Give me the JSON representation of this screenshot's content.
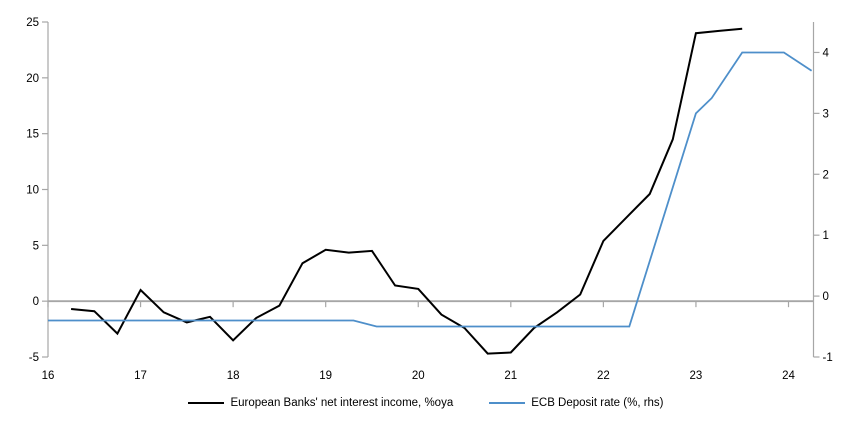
{
  "chart_data": {
    "type": "line",
    "title": "",
    "x_axis": {
      "ticks": [
        16,
        17,
        18,
        19,
        20,
        21,
        22,
        23,
        24
      ],
      "range": [
        16,
        24.27
      ]
    },
    "left_axis": {
      "ticks": [
        -5,
        0,
        5,
        10,
        15,
        20,
        25
      ],
      "range": [
        -5,
        25
      ]
    },
    "right_axis": {
      "ticks": [
        -1,
        0,
        1,
        2,
        3,
        4
      ],
      "range": [
        -1,
        4.5
      ]
    },
    "zero_line": true,
    "legend_position": "bottom",
    "series": [
      {
        "name": "European Banks' net interest income, %oya",
        "axis": "left",
        "color": "#000000",
        "width": 2,
        "points": [
          [
            16.25,
            -0.7
          ],
          [
            16.5,
            -0.9
          ],
          [
            16.75,
            -2.9
          ],
          [
            17.0,
            1.0
          ],
          [
            17.25,
            -1.0
          ],
          [
            17.5,
            -1.9
          ],
          [
            17.75,
            -1.4
          ],
          [
            18.0,
            -3.5
          ],
          [
            18.25,
            -1.5
          ],
          [
            18.5,
            -0.4
          ],
          [
            18.75,
            3.4
          ],
          [
            19.0,
            4.6
          ],
          [
            19.25,
            4.35
          ],
          [
            19.5,
            4.5
          ],
          [
            19.75,
            1.4
          ],
          [
            20.0,
            1.1
          ],
          [
            20.25,
            -1.2
          ],
          [
            20.5,
            -2.4
          ],
          [
            20.75,
            -4.7
          ],
          [
            21.0,
            -4.6
          ],
          [
            21.25,
            -2.4
          ],
          [
            21.5,
            -1.0
          ],
          [
            21.75,
            0.6
          ],
          [
            22.0,
            5.4
          ],
          [
            22.25,
            7.5
          ],
          [
            22.5,
            9.6
          ],
          [
            22.75,
            14.5
          ],
          [
            23.0,
            24.0
          ],
          [
            23.25,
            24.2
          ],
          [
            23.5,
            24.4
          ]
        ]
      },
      {
        "name": "ECB Deposit rate (%, rhs)",
        "axis": "right",
        "color": "#4e8fca",
        "width": 1.8,
        "points": [
          [
            16.0,
            -0.4
          ],
          [
            19.3,
            -0.4
          ],
          [
            19.55,
            -0.5
          ],
          [
            22.28,
            -0.5
          ],
          [
            23.0,
            3.0
          ],
          [
            23.17,
            3.25
          ],
          [
            23.5,
            4.0
          ],
          [
            23.95,
            4.0
          ],
          [
            24.25,
            3.7
          ]
        ]
      }
    ]
  },
  "colors": {
    "axis": "#a6a6a6",
    "text": "#000000",
    "black_series": "#000000",
    "blue_series": "#4e8fca"
  }
}
